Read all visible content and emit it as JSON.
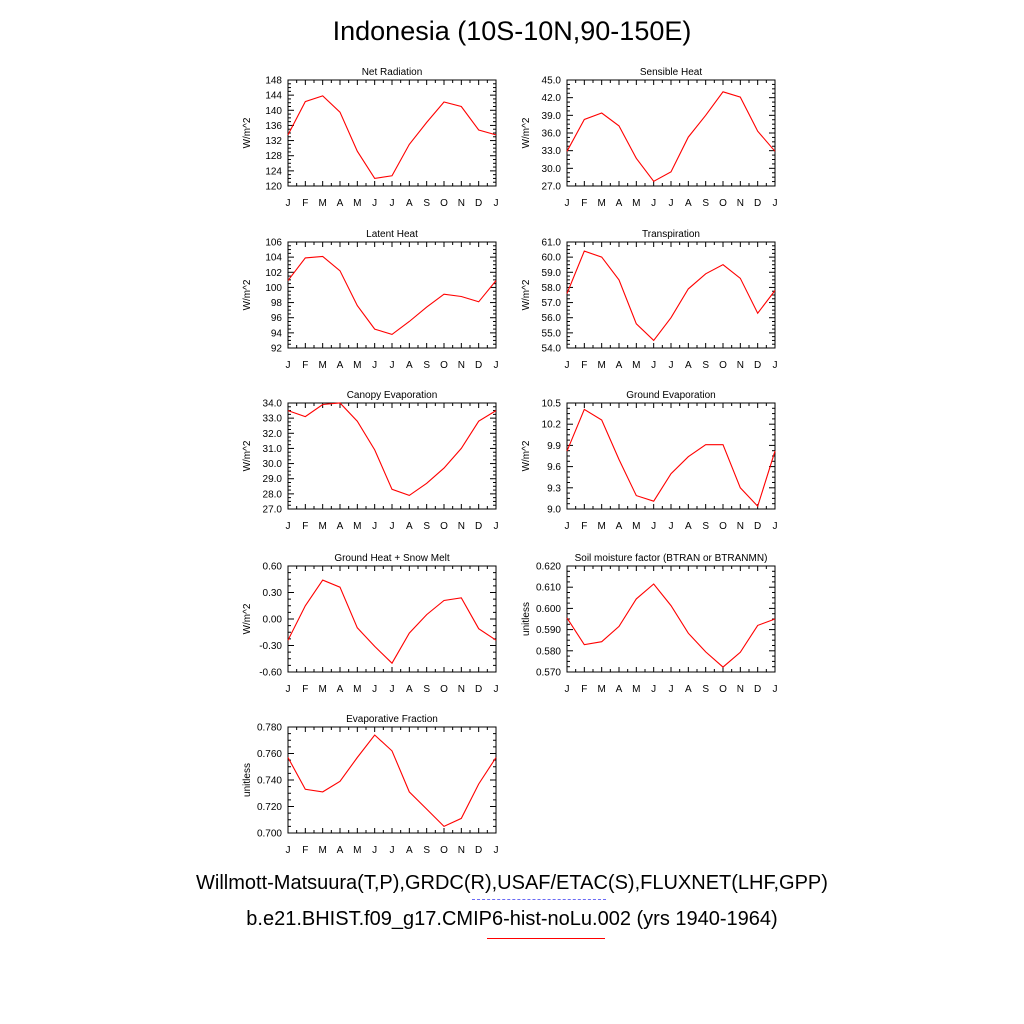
{
  "title": "Indonesia (10S-10N,90-150E)",
  "month_labels": [
    "J",
    "F",
    "M",
    "A",
    "M",
    "J",
    "J",
    "A",
    "S",
    "O",
    "N",
    "D",
    "J"
  ],
  "legend": {
    "line1": "Willmott-Matsuura(T,P),GRDC(R),USAF/ETAC(S),FLUXNET(LHF,GPP)",
    "line2": "b.e21.BHIST.f09_g17.CMIP6-hist-noLu.002 (yrs 1940-1964)",
    "obs_color": "#6a6af5",
    "model_color": "#ff0000"
  },
  "chart_data": [
    {
      "type": "line",
      "title": "Net Radiation",
      "ylabel": "W/m^2",
      "ylim": [
        120,
        148
      ],
      "yticks": [
        "120",
        "124",
        "128",
        "132",
        "136",
        "140",
        "144",
        "148"
      ],
      "x": [
        "J",
        "F",
        "M",
        "A",
        "M",
        "J",
        "J",
        "A",
        "S",
        "O",
        "N",
        "D",
        "J"
      ],
      "values": [
        133.5,
        142.3,
        143.8,
        139.5,
        129.2,
        122.0,
        122.7,
        131.0,
        136.8,
        142.2,
        141.0,
        134.8,
        133.5
      ],
      "color": "#ff0000"
    },
    {
      "type": "line",
      "title": "Sensible Heat",
      "ylabel": "W/m^2",
      "ylim": [
        27.0,
        45.0
      ],
      "yticks": [
        "27.0",
        "30.0",
        "33.0",
        "36.0",
        "39.0",
        "42.0",
        "45.0"
      ],
      "x": [
        "J",
        "F",
        "M",
        "A",
        "M",
        "J",
        "J",
        "A",
        "S",
        "O",
        "N",
        "D",
        "J"
      ],
      "values": [
        32.9,
        38.3,
        39.4,
        37.2,
        31.7,
        27.8,
        29.4,
        35.3,
        39.0,
        43.0,
        42.1,
        36.3,
        32.9
      ],
      "color": "#ff0000"
    },
    {
      "type": "line",
      "title": "Latent Heat",
      "ylabel": "W/m^2",
      "ylim": [
        92,
        106
      ],
      "yticks": [
        "92",
        "94",
        "96",
        "98",
        "100",
        "102",
        "104",
        "106"
      ],
      "x": [
        "J",
        "F",
        "M",
        "A",
        "M",
        "J",
        "J",
        "A",
        "S",
        "O",
        "N",
        "D",
        "J"
      ],
      "values": [
        100.9,
        103.9,
        104.1,
        102.2,
        97.6,
        94.5,
        93.8,
        95.5,
        97.4,
        99.1,
        98.8,
        98.1,
        100.9
      ],
      "color": "#ff0000"
    },
    {
      "type": "line",
      "title": "Transpiration",
      "ylabel": "W/m^2",
      "ylim": [
        54.0,
        61.0
      ],
      "yticks": [
        "54.0",
        "55.0",
        "56.0",
        "57.0",
        "58.0",
        "59.0",
        "60.0",
        "61.0"
      ],
      "x": [
        "J",
        "F",
        "M",
        "A",
        "M",
        "J",
        "J",
        "A",
        "S",
        "O",
        "N",
        "D",
        "J"
      ],
      "values": [
        57.6,
        60.4,
        60.0,
        58.5,
        55.6,
        54.5,
        56.0,
        57.9,
        58.9,
        59.5,
        58.6,
        56.3,
        57.8
      ],
      "color": "#ff0000"
    },
    {
      "type": "line",
      "title": "Canopy Evaporation",
      "ylabel": "W/m^2",
      "ylim": [
        27.0,
        34.0
      ],
      "yticks": [
        "27.0",
        "28.0",
        "29.0",
        "30.0",
        "31.0",
        "32.0",
        "33.0",
        "34.0"
      ],
      "x": [
        "J",
        "F",
        "M",
        "A",
        "M",
        "J",
        "J",
        "A",
        "S",
        "O",
        "N",
        "D",
        "J"
      ],
      "values": [
        33.5,
        33.1,
        33.9,
        34.0,
        32.8,
        30.9,
        28.3,
        27.9,
        28.7,
        29.7,
        31.0,
        32.8,
        33.5
      ],
      "color": "#ff0000"
    },
    {
      "type": "line",
      "title": "Ground Evaporation",
      "ylabel": "W/m^2",
      "ylim": [
        9.0,
        10.5
      ],
      "yticks": [
        "9.0",
        "9.3",
        "9.6",
        "9.9",
        "10.2",
        "10.5"
      ],
      "x": [
        "J",
        "F",
        "M",
        "A",
        "M",
        "J",
        "J",
        "A",
        "S",
        "O",
        "N",
        "D",
        "J"
      ],
      "values": [
        9.82,
        10.41,
        10.26,
        9.7,
        9.19,
        9.11,
        9.5,
        9.74,
        9.91,
        9.91,
        9.3,
        9.04,
        9.82
      ],
      "color": "#ff0000"
    },
    {
      "type": "line",
      "title": "Ground Heat + Snow Melt",
      "ylabel": "W/m^2",
      "ylim": [
        -0.6,
        0.6
      ],
      "yticks": [
        "-0.60",
        "-0.30",
        "0.00",
        "0.30",
        "0.60"
      ],
      "x": [
        "J",
        "F",
        "M",
        "A",
        "M",
        "J",
        "J",
        "A",
        "S",
        "O",
        "N",
        "D",
        "J"
      ],
      "values": [
        -0.24,
        0.15,
        0.44,
        0.36,
        -0.1,
        -0.31,
        -0.5,
        -0.16,
        0.05,
        0.21,
        0.24,
        -0.11,
        -0.24
      ],
      "color": "#ff0000"
    },
    {
      "type": "line",
      "title": "Soil moisture factor (BTRAN or BTRANMN)",
      "ylabel": "unitless",
      "ylim": [
        0.57,
        0.62
      ],
      "yticks": [
        "0.570",
        "0.580",
        "0.590",
        "0.600",
        "0.610",
        "0.620"
      ],
      "x": [
        "J",
        "F",
        "M",
        "A",
        "M",
        "J",
        "J",
        "A",
        "S",
        "O",
        "N",
        "D",
        "J"
      ],
      "values": [
        0.5955,
        0.5829,
        0.5843,
        0.5915,
        0.6045,
        0.6115,
        0.6013,
        0.5883,
        0.5795,
        0.5723,
        0.5793,
        0.592,
        0.595
      ],
      "color": "#ff0000"
    },
    {
      "type": "line",
      "title": "Evaporative Fraction",
      "ylabel": "unitless",
      "ylim": [
        0.7,
        0.78
      ],
      "yticks": [
        "0.700",
        "0.720",
        "0.740",
        "0.760",
        "0.780"
      ],
      "x": [
        "J",
        "F",
        "M",
        "A",
        "M",
        "J",
        "J",
        "A",
        "S",
        "O",
        "N",
        "D",
        "J"
      ],
      "values": [
        0.757,
        0.733,
        0.731,
        0.739,
        0.757,
        0.774,
        0.762,
        0.731,
        0.718,
        0.705,
        0.711,
        0.737,
        0.757
      ],
      "color": "#ff0000"
    }
  ]
}
